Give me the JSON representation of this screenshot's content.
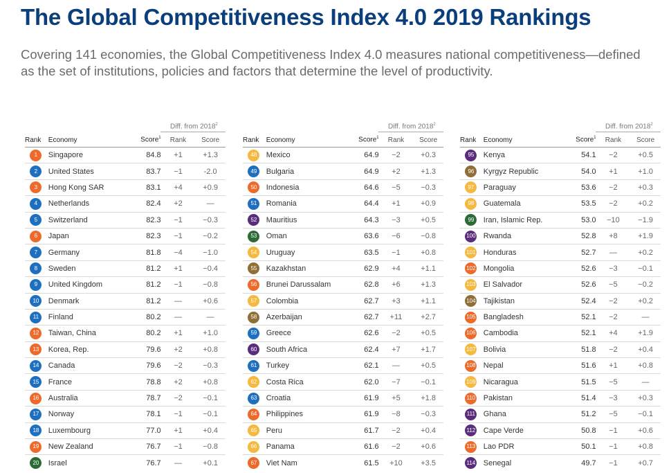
{
  "title": "The Global Competitiveness Index 4.0 2019 Rankings",
  "subtitle": "Covering 141 economies, the Global Competitiveness Index 4.0 measures national competitiveness—defined as the set of institutions, policies and factors that determine the level of productivity.",
  "headers": {
    "diff": "Diff. from 2018",
    "diff_sup": "2",
    "rank": "Rank",
    "economy": "Economy",
    "score": "Score",
    "score_sup": "1",
    "d_rank": "Rank",
    "d_score": "Score"
  },
  "colors": {
    "orange": "#ee6a2b",
    "blue": "#1e6fc0",
    "purple": "#5a2d7c",
    "yellow": "#f6b93f",
    "green": "#2c6b35",
    "brown": "#8f6f35",
    "title": "#0b3f7c"
  },
  "columns": [
    {
      "rows": [
        {
          "rank": "1",
          "economy": "Singapore",
          "score": "84.8",
          "drank": "+1",
          "dscore": "+1.3",
          "color": "orange"
        },
        {
          "rank": "2",
          "economy": "United States",
          "score": "83.7",
          "drank": "−1",
          "dscore": "-2.0",
          "color": "blue"
        },
        {
          "rank": "3",
          "economy": "Hong Kong SAR",
          "score": "83.1",
          "drank": "+4",
          "dscore": "+0.9",
          "color": "orange"
        },
        {
          "rank": "4",
          "economy": "Netherlands",
          "score": "82.4",
          "drank": "+2",
          "dscore": "—",
          "color": "blue"
        },
        {
          "rank": "5",
          "economy": "Switzerland",
          "score": "82.3",
          "drank": "−1",
          "dscore": "−0.3",
          "color": "blue"
        },
        {
          "rank": "6",
          "economy": "Japan",
          "score": "82.3",
          "drank": "−1",
          "dscore": "−0.2",
          "color": "orange"
        },
        {
          "rank": "7",
          "economy": "Germany",
          "score": "81.8",
          "drank": "−4",
          "dscore": "−1.0",
          "color": "blue"
        },
        {
          "rank": "8",
          "economy": "Sweden",
          "score": "81.2",
          "drank": "+1",
          "dscore": "−0.4",
          "color": "blue"
        },
        {
          "rank": "9",
          "economy": "United Kingdom",
          "score": "81.2",
          "drank": "−1",
          "dscore": "−0.8",
          "color": "blue"
        },
        {
          "rank": "10",
          "economy": "Denmark",
          "score": "81.2",
          "drank": "—",
          "dscore": "+0.6",
          "color": "blue"
        },
        {
          "rank": "11",
          "economy": "Finland",
          "score": "80.2",
          "drank": "—",
          "dscore": "—",
          "color": "blue"
        },
        {
          "rank": "12",
          "economy": "Taiwan, China",
          "score": "80.2",
          "drank": "+1",
          "dscore": "+1.0",
          "color": "orange"
        },
        {
          "rank": "13",
          "economy": "Korea, Rep.",
          "score": "79.6",
          "drank": "+2",
          "dscore": "+0.8",
          "color": "orange"
        },
        {
          "rank": "14",
          "economy": "Canada",
          "score": "79.6",
          "drank": "−2",
          "dscore": "−0.3",
          "color": "blue"
        },
        {
          "rank": "15",
          "economy": "France",
          "score": "78.8",
          "drank": "+2",
          "dscore": "+0.8",
          "color": "blue"
        },
        {
          "rank": "16",
          "economy": "Australia",
          "score": "78.7",
          "drank": "−2",
          "dscore": "−0.1",
          "color": "orange"
        },
        {
          "rank": "17",
          "economy": "Norway",
          "score": "78.1",
          "drank": "−1",
          "dscore": "−0.1",
          "color": "blue"
        },
        {
          "rank": "18",
          "economy": "Luxembourg",
          "score": "77.0",
          "drank": "+1",
          "dscore": "+0.4",
          "color": "blue"
        },
        {
          "rank": "19",
          "economy": "New Zealand",
          "score": "76.7",
          "drank": "−1",
          "dscore": "−0.8",
          "color": "orange"
        },
        {
          "rank": "20",
          "economy": "Israel",
          "score": "76.7",
          "drank": "—",
          "dscore": "+0.1",
          "color": "green"
        }
      ]
    },
    {
      "rows": [
        {
          "rank": "48",
          "economy": "Mexico",
          "score": "64.9",
          "drank": "−2",
          "dscore": "+0.3",
          "color": "yellow"
        },
        {
          "rank": "49",
          "economy": "Bulgaria",
          "score": "64.9",
          "drank": "+2",
          "dscore": "+1.3",
          "color": "blue"
        },
        {
          "rank": "50",
          "economy": "Indonesia",
          "score": "64.6",
          "drank": "−5",
          "dscore": "−0.3",
          "color": "orange"
        },
        {
          "rank": "51",
          "economy": "Romania",
          "score": "64.4",
          "drank": "+1",
          "dscore": "+0.9",
          "color": "blue"
        },
        {
          "rank": "52",
          "economy": "Mauritius",
          "score": "64.3",
          "drank": "−3",
          "dscore": "+0.5",
          "color": "purple"
        },
        {
          "rank": "53",
          "economy": "Oman",
          "score": "63.6",
          "drank": "−6",
          "dscore": "−0.8",
          "color": "green"
        },
        {
          "rank": "54",
          "economy": "Uruguay",
          "score": "63.5",
          "drank": "−1",
          "dscore": "+0.8",
          "color": "yellow"
        },
        {
          "rank": "55",
          "economy": "Kazakhstan",
          "score": "62.9",
          "drank": "+4",
          "dscore": "+1.1",
          "color": "brown"
        },
        {
          "rank": "56",
          "economy": "Brunei Darussalam",
          "score": "62.8",
          "drank": "+6",
          "dscore": "+1.3",
          "color": "orange"
        },
        {
          "rank": "57",
          "economy": "Colombia",
          "score": "62.7",
          "drank": "+3",
          "dscore": "+1.1",
          "color": "yellow"
        },
        {
          "rank": "58",
          "economy": "Azerbaijan",
          "score": "62.7",
          "drank": "+11",
          "dscore": "+2.7",
          "color": "brown"
        },
        {
          "rank": "59",
          "economy": "Greece",
          "score": "62.6",
          "drank": "−2",
          "dscore": "+0.5",
          "color": "blue"
        },
        {
          "rank": "60",
          "economy": "South Africa",
          "score": "62.4",
          "drank": "+7",
          "dscore": "+1.7",
          "color": "purple"
        },
        {
          "rank": "61",
          "economy": "Turkey",
          "score": "62.1",
          "drank": "—",
          "dscore": "+0.5",
          "color": "blue"
        },
        {
          "rank": "62",
          "economy": "Costa Rica",
          "score": "62.0",
          "drank": "−7",
          "dscore": "−0.1",
          "color": "yellow"
        },
        {
          "rank": "63",
          "economy": "Croatia",
          "score": "61.9",
          "drank": "+5",
          "dscore": "+1.8",
          "color": "blue"
        },
        {
          "rank": "64",
          "economy": "Philippines",
          "score": "61.9",
          "drank": "−8",
          "dscore": "−0.3",
          "color": "orange"
        },
        {
          "rank": "65",
          "economy": "Peru",
          "score": "61.7",
          "drank": "−2",
          "dscore": "+0.4",
          "color": "yellow"
        },
        {
          "rank": "66",
          "economy": "Panama",
          "score": "61.6",
          "drank": "−2",
          "dscore": "+0.6",
          "color": "yellow"
        },
        {
          "rank": "67",
          "economy": "Viet Nam",
          "score": "61.5",
          "drank": "+10",
          "dscore": "+3.5",
          "color": "orange"
        }
      ]
    },
    {
      "rows": [
        {
          "rank": "95",
          "economy": "Kenya",
          "score": "54.1",
          "drank": "−2",
          "dscore": "+0.5",
          "color": "purple"
        },
        {
          "rank": "96",
          "economy": "Kyrgyz Republic",
          "score": "54.0",
          "drank": "+1",
          "dscore": "+1.0",
          "color": "brown"
        },
        {
          "rank": "97",
          "economy": "Paraguay",
          "score": "53.6",
          "drank": "−2",
          "dscore": "+0.3",
          "color": "yellow"
        },
        {
          "rank": "98",
          "economy": "Guatemala",
          "score": "53.5",
          "drank": "−2",
          "dscore": "+0.2",
          "color": "yellow"
        },
        {
          "rank": "99",
          "economy": "Iran, Islamic Rep.",
          "score": "53.0",
          "drank": "−10",
          "dscore": "−1.9",
          "color": "green"
        },
        {
          "rank": "100",
          "economy": "Rwanda",
          "score": "52.8",
          "drank": "+8",
          "dscore": "+1.9",
          "color": "purple"
        },
        {
          "rank": "101",
          "economy": "Honduras",
          "score": "52.7",
          "drank": "—",
          "dscore": "+0.2",
          "color": "yellow"
        },
        {
          "rank": "102",
          "economy": "Mongolia",
          "score": "52.6",
          "drank": "−3",
          "dscore": "−0.1",
          "color": "orange"
        },
        {
          "rank": "103",
          "economy": "El Salvador",
          "score": "52.6",
          "drank": "−5",
          "dscore": "−0.2",
          "color": "yellow"
        },
        {
          "rank": "104",
          "economy": "Tajikistan",
          "score": "52.4",
          "drank": "−2",
          "dscore": "+0.2",
          "color": "brown"
        },
        {
          "rank": "105",
          "economy": "Bangladesh",
          "score": "52.1",
          "drank": "−2",
          "dscore": "—",
          "color": "orange"
        },
        {
          "rank": "106",
          "economy": "Cambodia",
          "score": "52.1",
          "drank": "+4",
          "dscore": "+1.9",
          "color": "orange"
        },
        {
          "rank": "107",
          "economy": "Bolivia",
          "score": "51.8",
          "drank": "−2",
          "dscore": "+0.4",
          "color": "yellow"
        },
        {
          "rank": "108",
          "economy": "Nepal",
          "score": "51.6",
          "drank": "+1",
          "dscore": "+0.8",
          "color": "orange"
        },
        {
          "rank": "109",
          "economy": "Nicaragua",
          "score": "51.5",
          "drank": "−5",
          "dscore": "—",
          "color": "yellow"
        },
        {
          "rank": "110",
          "economy": "Pakistan",
          "score": "51.4",
          "drank": "−3",
          "dscore": "+0.3",
          "color": "orange"
        },
        {
          "rank": "111",
          "economy": "Ghana",
          "score": "51.2",
          "drank": "−5",
          "dscore": "−0.1",
          "color": "purple"
        },
        {
          "rank": "112",
          "economy": "Cape Verde",
          "score": "50.8",
          "drank": "−1",
          "dscore": "+0.6",
          "color": "purple"
        },
        {
          "rank": "113",
          "economy": "Lao PDR",
          "score": "50.1",
          "drank": "−1",
          "dscore": "+0.8",
          "color": "orange"
        },
        {
          "rank": "114",
          "economy": "Senegal",
          "score": "49.7",
          "drank": "−1",
          "dscore": "+0.7",
          "color": "purple"
        }
      ]
    }
  ]
}
